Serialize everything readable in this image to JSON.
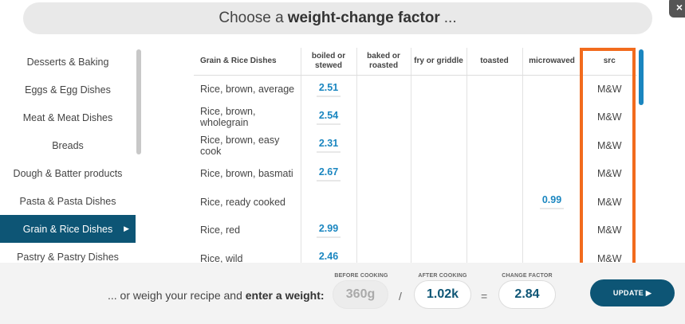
{
  "title": {
    "prefix": "Choose a",
    "bold": "weight-change factor",
    "suffix": "..."
  },
  "close_icon": "×",
  "sidebar": {
    "items": [
      {
        "label": "Desserts & Baking"
      },
      {
        "label": "Eggs & Egg Dishes"
      },
      {
        "label": "Meat & Meat Dishes"
      },
      {
        "label": "Breads"
      },
      {
        "label": "Dough & Batter products"
      },
      {
        "label": "Pasta & Pasta Dishes"
      },
      {
        "label": "Grain & Rice Dishes",
        "active": true
      },
      {
        "label": "Pastry & Pastry Dishes"
      }
    ],
    "active_arrow": "▶"
  },
  "table": {
    "headers": {
      "food": "Grain & Rice Dishes",
      "boiled": "boiled or stewed",
      "baked": "baked or roasted",
      "fry": "fry or griddle",
      "toasted": "toasted",
      "microwaved": "microwaved",
      "src": "src"
    },
    "rows": [
      {
        "name": "Rice, brown, average",
        "boiled": "2.51",
        "baked": "",
        "fry": "",
        "toasted": "",
        "microwaved": "",
        "src": "M&W"
      },
      {
        "name": "Rice, brown, wholegrain",
        "boiled": "2.54",
        "baked": "",
        "fry": "",
        "toasted": "",
        "microwaved": "",
        "src": "M&W"
      },
      {
        "name": "Rice, brown, easy cook",
        "boiled": "2.31",
        "baked": "",
        "fry": "",
        "toasted": "",
        "microwaved": "",
        "src": "M&W"
      },
      {
        "name": "Rice, brown, basmati",
        "boiled": "2.67",
        "baked": "",
        "fry": "",
        "toasted": "",
        "microwaved": "",
        "src": "M&W"
      },
      {
        "name": "Rice, ready cooked",
        "boiled": "",
        "baked": "",
        "fry": "",
        "toasted": "",
        "microwaved": "0.99",
        "src": "M&W"
      },
      {
        "name": "Rice, red",
        "boiled": "2.99",
        "baked": "",
        "fry": "",
        "toasted": "",
        "microwaved": "",
        "src": "M&W"
      },
      {
        "name": "Rice, wild",
        "boiled": "2.46",
        "baked": "",
        "fry": "",
        "toasted": "",
        "microwaved": "",
        "src": "M&W"
      }
    ]
  },
  "footer": {
    "prompt_prefix": "... or weigh your recipe and",
    "prompt_bold": "enter a weight:",
    "before_label": "BEFORE COOKING",
    "before_value": "360g",
    "after_label": "AFTER COOKING",
    "after_value": "1.02k",
    "factor_label": "CHANGE FACTOR",
    "factor_value": "2.84",
    "divide_op": "/",
    "equals_op": "=",
    "update_label": "UPDATE ▶"
  },
  "colors": {
    "accent": "#0d5575",
    "value_blue": "#1a86c0",
    "highlight_orange": "#f26b1d"
  }
}
